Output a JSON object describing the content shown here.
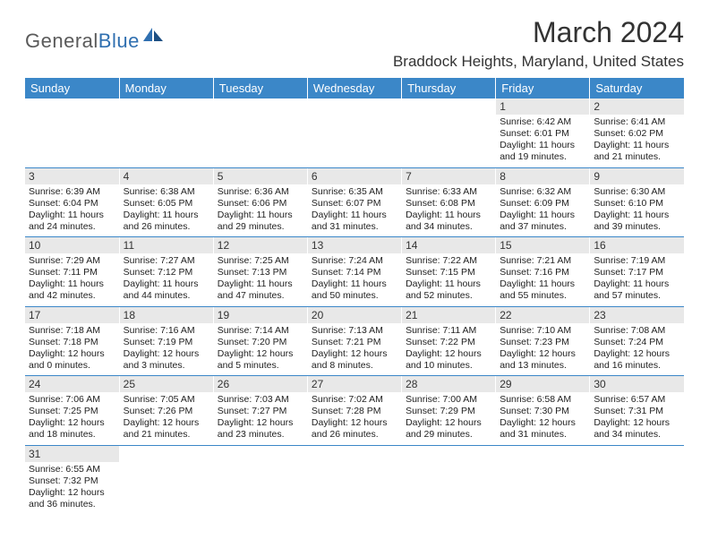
{
  "logo": {
    "text_a": "General",
    "text_b": "Blue"
  },
  "title": "March 2024",
  "location": "Braddock Heights, Maryland, United States",
  "colors": {
    "header_bg": "#3b87c8",
    "header_text": "#ffffff",
    "daynum_bg": "#e8e8e8",
    "rule": "#3b87c8",
    "logo_gray": "#5a5a5a",
    "logo_blue": "#2f6fb0"
  },
  "day_labels": [
    "Sunday",
    "Monday",
    "Tuesday",
    "Wednesday",
    "Thursday",
    "Friday",
    "Saturday"
  ],
  "weeks": [
    [
      {
        "n": "",
        "sr": "",
        "ss": "",
        "dl": ""
      },
      {
        "n": "",
        "sr": "",
        "ss": "",
        "dl": ""
      },
      {
        "n": "",
        "sr": "",
        "ss": "",
        "dl": ""
      },
      {
        "n": "",
        "sr": "",
        "ss": "",
        "dl": ""
      },
      {
        "n": "",
        "sr": "",
        "ss": "",
        "dl": ""
      },
      {
        "n": "1",
        "sr": "Sunrise: 6:42 AM",
        "ss": "Sunset: 6:01 PM",
        "dl": "Daylight: 11 hours and 19 minutes."
      },
      {
        "n": "2",
        "sr": "Sunrise: 6:41 AM",
        "ss": "Sunset: 6:02 PM",
        "dl": "Daylight: 11 hours and 21 minutes."
      }
    ],
    [
      {
        "n": "3",
        "sr": "Sunrise: 6:39 AM",
        "ss": "Sunset: 6:04 PM",
        "dl": "Daylight: 11 hours and 24 minutes."
      },
      {
        "n": "4",
        "sr": "Sunrise: 6:38 AM",
        "ss": "Sunset: 6:05 PM",
        "dl": "Daylight: 11 hours and 26 minutes."
      },
      {
        "n": "5",
        "sr": "Sunrise: 6:36 AM",
        "ss": "Sunset: 6:06 PM",
        "dl": "Daylight: 11 hours and 29 minutes."
      },
      {
        "n": "6",
        "sr": "Sunrise: 6:35 AM",
        "ss": "Sunset: 6:07 PM",
        "dl": "Daylight: 11 hours and 31 minutes."
      },
      {
        "n": "7",
        "sr": "Sunrise: 6:33 AM",
        "ss": "Sunset: 6:08 PM",
        "dl": "Daylight: 11 hours and 34 minutes."
      },
      {
        "n": "8",
        "sr": "Sunrise: 6:32 AM",
        "ss": "Sunset: 6:09 PM",
        "dl": "Daylight: 11 hours and 37 minutes."
      },
      {
        "n": "9",
        "sr": "Sunrise: 6:30 AM",
        "ss": "Sunset: 6:10 PM",
        "dl": "Daylight: 11 hours and 39 minutes."
      }
    ],
    [
      {
        "n": "10",
        "sr": "Sunrise: 7:29 AM",
        "ss": "Sunset: 7:11 PM",
        "dl": "Daylight: 11 hours and 42 minutes."
      },
      {
        "n": "11",
        "sr": "Sunrise: 7:27 AM",
        "ss": "Sunset: 7:12 PM",
        "dl": "Daylight: 11 hours and 44 minutes."
      },
      {
        "n": "12",
        "sr": "Sunrise: 7:25 AM",
        "ss": "Sunset: 7:13 PM",
        "dl": "Daylight: 11 hours and 47 minutes."
      },
      {
        "n": "13",
        "sr": "Sunrise: 7:24 AM",
        "ss": "Sunset: 7:14 PM",
        "dl": "Daylight: 11 hours and 50 minutes."
      },
      {
        "n": "14",
        "sr": "Sunrise: 7:22 AM",
        "ss": "Sunset: 7:15 PM",
        "dl": "Daylight: 11 hours and 52 minutes."
      },
      {
        "n": "15",
        "sr": "Sunrise: 7:21 AM",
        "ss": "Sunset: 7:16 PM",
        "dl": "Daylight: 11 hours and 55 minutes."
      },
      {
        "n": "16",
        "sr": "Sunrise: 7:19 AM",
        "ss": "Sunset: 7:17 PM",
        "dl": "Daylight: 11 hours and 57 minutes."
      }
    ],
    [
      {
        "n": "17",
        "sr": "Sunrise: 7:18 AM",
        "ss": "Sunset: 7:18 PM",
        "dl": "Daylight: 12 hours and 0 minutes."
      },
      {
        "n": "18",
        "sr": "Sunrise: 7:16 AM",
        "ss": "Sunset: 7:19 PM",
        "dl": "Daylight: 12 hours and 3 minutes."
      },
      {
        "n": "19",
        "sr": "Sunrise: 7:14 AM",
        "ss": "Sunset: 7:20 PM",
        "dl": "Daylight: 12 hours and 5 minutes."
      },
      {
        "n": "20",
        "sr": "Sunrise: 7:13 AM",
        "ss": "Sunset: 7:21 PM",
        "dl": "Daylight: 12 hours and 8 minutes."
      },
      {
        "n": "21",
        "sr": "Sunrise: 7:11 AM",
        "ss": "Sunset: 7:22 PM",
        "dl": "Daylight: 12 hours and 10 minutes."
      },
      {
        "n": "22",
        "sr": "Sunrise: 7:10 AM",
        "ss": "Sunset: 7:23 PM",
        "dl": "Daylight: 12 hours and 13 minutes."
      },
      {
        "n": "23",
        "sr": "Sunrise: 7:08 AM",
        "ss": "Sunset: 7:24 PM",
        "dl": "Daylight: 12 hours and 16 minutes."
      }
    ],
    [
      {
        "n": "24",
        "sr": "Sunrise: 7:06 AM",
        "ss": "Sunset: 7:25 PM",
        "dl": "Daylight: 12 hours and 18 minutes."
      },
      {
        "n": "25",
        "sr": "Sunrise: 7:05 AM",
        "ss": "Sunset: 7:26 PM",
        "dl": "Daylight: 12 hours and 21 minutes."
      },
      {
        "n": "26",
        "sr": "Sunrise: 7:03 AM",
        "ss": "Sunset: 7:27 PM",
        "dl": "Daylight: 12 hours and 23 minutes."
      },
      {
        "n": "27",
        "sr": "Sunrise: 7:02 AM",
        "ss": "Sunset: 7:28 PM",
        "dl": "Daylight: 12 hours and 26 minutes."
      },
      {
        "n": "28",
        "sr": "Sunrise: 7:00 AM",
        "ss": "Sunset: 7:29 PM",
        "dl": "Daylight: 12 hours and 29 minutes."
      },
      {
        "n": "29",
        "sr": "Sunrise: 6:58 AM",
        "ss": "Sunset: 7:30 PM",
        "dl": "Daylight: 12 hours and 31 minutes."
      },
      {
        "n": "30",
        "sr": "Sunrise: 6:57 AM",
        "ss": "Sunset: 7:31 PM",
        "dl": "Daylight: 12 hours and 34 minutes."
      }
    ],
    [
      {
        "n": "31",
        "sr": "Sunrise: 6:55 AM",
        "ss": "Sunset: 7:32 PM",
        "dl": "Daylight: 12 hours and 36 minutes."
      },
      {
        "n": "",
        "sr": "",
        "ss": "",
        "dl": ""
      },
      {
        "n": "",
        "sr": "",
        "ss": "",
        "dl": ""
      },
      {
        "n": "",
        "sr": "",
        "ss": "",
        "dl": ""
      },
      {
        "n": "",
        "sr": "",
        "ss": "",
        "dl": ""
      },
      {
        "n": "",
        "sr": "",
        "ss": "",
        "dl": ""
      },
      {
        "n": "",
        "sr": "",
        "ss": "",
        "dl": ""
      }
    ]
  ]
}
